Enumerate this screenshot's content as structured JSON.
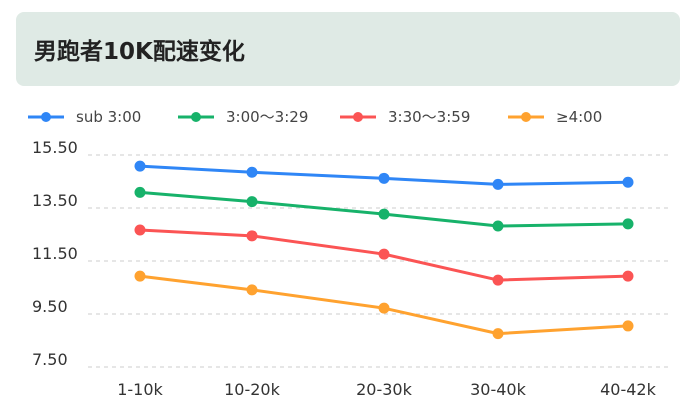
{
  "title": "男跑者10K配速变化",
  "chart_data": {
    "type": "line",
    "title": "男跑者10K配速变化",
    "categories": [
      "1-10k",
      "10-20k",
      "20-30k",
      "30-40k",
      "40-42k"
    ],
    "yticks": [
      "7.50",
      "9.50",
      "11.50",
      "13.50",
      "15.50"
    ],
    "ylim": [
      7.5,
      15.5
    ],
    "grid": true,
    "legend_position": "top",
    "series": [
      {
        "name": "sub 3:00",
        "color": "#2f86f6",
        "values": [
          15.08,
          14.85,
          14.62,
          14.39,
          14.47
        ]
      },
      {
        "name": "3:00～3:29",
        "color": "#17b26a",
        "values": [
          14.09,
          13.74,
          13.27,
          12.82,
          12.9
        ]
      },
      {
        "name": "3:30～3:59",
        "color": "#fb5454",
        "values": [
          12.67,
          12.45,
          11.76,
          10.78,
          10.93
        ]
      },
      {
        "name": "≥4:00",
        "color": "#ffa22f",
        "values": [
          10.93,
          10.41,
          9.72,
          8.76,
          9.05
        ]
      }
    ]
  }
}
